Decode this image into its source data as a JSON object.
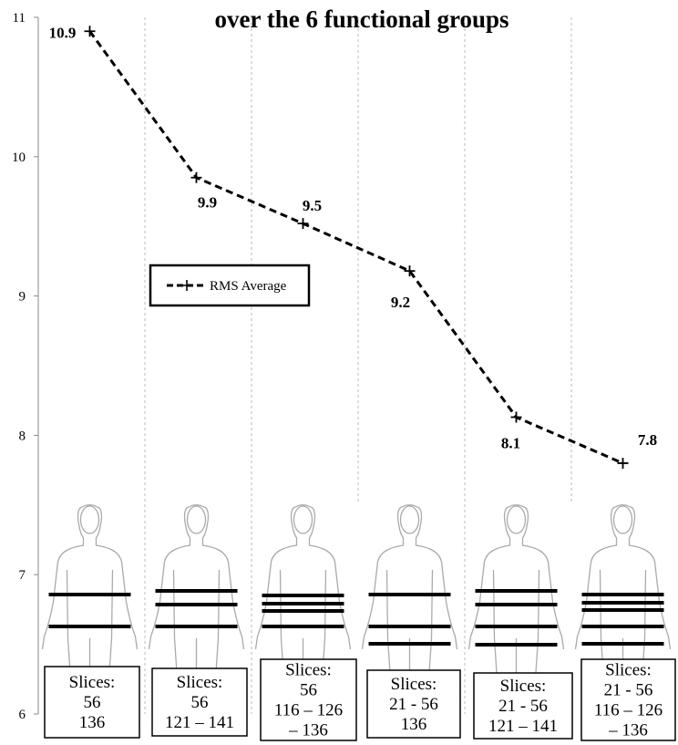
{
  "chart_data": {
    "type": "line",
    "title": "over the 6 functional groups",
    "xlabel": "",
    "ylabel": "",
    "ylim": [
      6,
      11
    ],
    "yticks": [
      "6",
      "7",
      "8",
      "9",
      "10",
      "11"
    ],
    "grid": "vertical dotted separators between groups",
    "legend": {
      "placement": "upper-left",
      "label": "RMS Average"
    },
    "series": [
      {
        "name": "RMS Average",
        "values": [
          10.9,
          9.85,
          9.52,
          9.18,
          8.13,
          7.8
        ],
        "data_labels": [
          "10.9",
          "9.9",
          "9.5",
          "9.2",
          "8.1",
          "7.8"
        ]
      }
    ],
    "groups": [
      {
        "slices_label": "Slices:",
        "lines": [
          "56",
          "136"
        ],
        "band_count": 2
      },
      {
        "slices_label": "Slices:",
        "lines": [
          "56",
          "121 – 141"
        ],
        "band_count": 3
      },
      {
        "slices_label": "Slices:",
        "lines": [
          "56",
          "116 – 126",
          "– 136"
        ],
        "band_count": 4
      },
      {
        "slices_label": "Slices:",
        "lines": [
          "21 - 56",
          "136"
        ],
        "band_count": 3
      },
      {
        "slices_label": "Slices:",
        "lines": [
          "21 - 56",
          "121 – 141"
        ],
        "band_count": 4
      },
      {
        "slices_label": "Slices:",
        "lines": [
          "21 - 56",
          "116 – 126",
          "– 136"
        ],
        "band_count": 5
      }
    ]
  }
}
